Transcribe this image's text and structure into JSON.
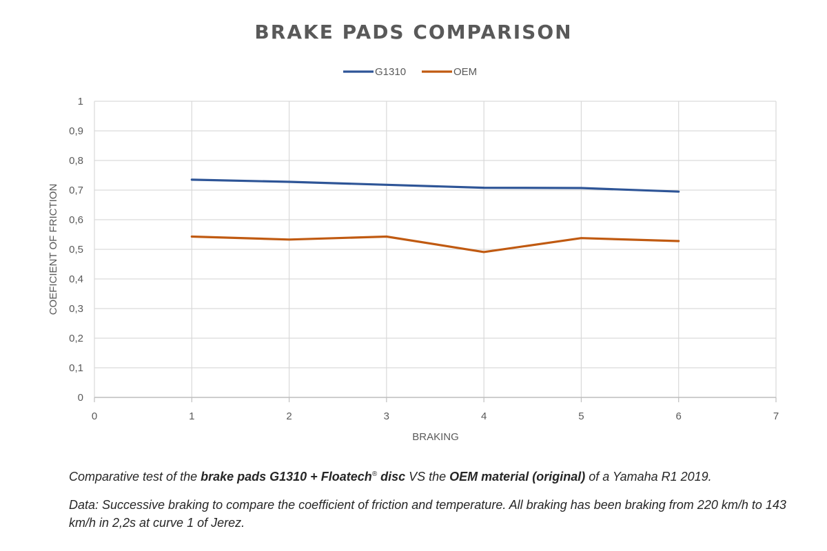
{
  "chart_data": {
    "type": "line",
    "title": "BRAKE PADS COMPARISON",
    "xlabel": "BRAKING",
    "ylabel": "COEFICIENT OF FRICTION",
    "xlim": [
      0,
      7
    ],
    "ylim": [
      0,
      1
    ],
    "x_ticks": [
      "0",
      "1",
      "2",
      "3",
      "4",
      "5",
      "6",
      "7"
    ],
    "y_ticks": [
      "0",
      "0,1",
      "0,2",
      "0,3",
      "0,4",
      "0,5",
      "0,6",
      "0,7",
      "0,8",
      "0,9",
      "1"
    ],
    "grid": true,
    "legend_position": "top-center",
    "series": [
      {
        "name": "G1310",
        "color": "#2e5597",
        "x": [
          1,
          2,
          3,
          4,
          5,
          6
        ],
        "values": [
          0.735,
          0.728,
          0.718,
          0.708,
          0.707,
          0.695
        ]
      },
      {
        "name": "OEM",
        "color": "#c05a11",
        "x": [
          1,
          2,
          3,
          4,
          5,
          6
        ],
        "values": [
          0.543,
          0.533,
          0.543,
          0.491,
          0.538,
          0.528
        ]
      }
    ]
  },
  "caption": {
    "line1": {
      "part1": "Comparative test of the ",
      "bold1": "brake pads G1310 + Floatech",
      "sup": "®",
      "bold2": " disc",
      "part2": " VS the ",
      "bold3": "OEM material (original)",
      "part3": " of a Yamaha R1 2019."
    },
    "line2": "Data: Successive braking to compare the coefficient of friction and temperature. All braking has been braking from 220 km/h to 143 km/h in 2,2s at curve 1 of Jerez."
  }
}
